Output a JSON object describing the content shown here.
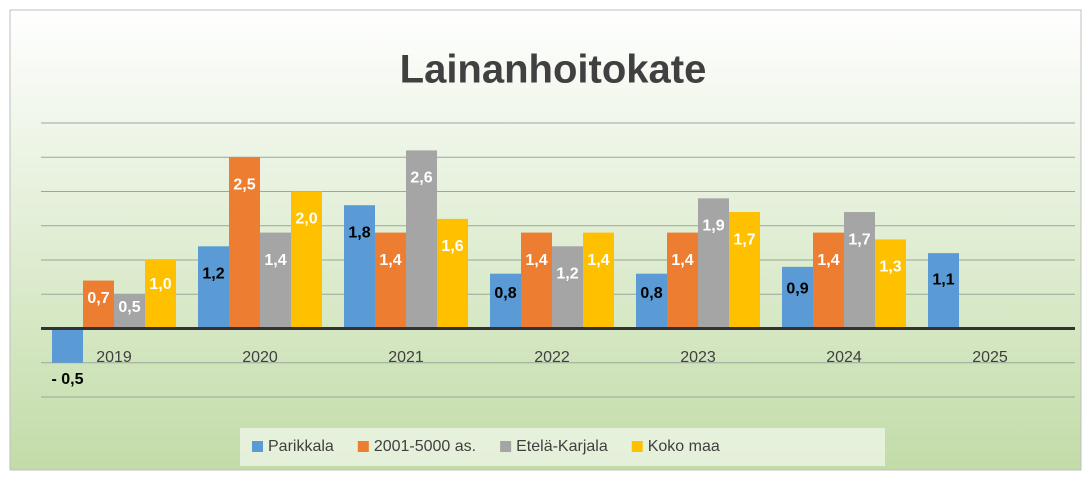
{
  "chart_data": {
    "type": "bar",
    "title": "Lainanhoitokate",
    "categories": [
      "2019",
      "2020",
      "2021",
      "2022",
      "2023",
      "2024",
      "2025"
    ],
    "series": [
      {
        "name": "Parikkala",
        "color": "#5b9bd5",
        "label_color": "#000000",
        "values": [
          -0.5,
          1.2,
          1.8,
          0.8,
          0.8,
          0.9,
          1.1
        ],
        "value_labels": [
          "- 0,5",
          "1,2",
          "1,8",
          "0,8",
          "0,8",
          "0,9",
          "1,1"
        ]
      },
      {
        "name": "2001-5000 as.",
        "color": "#ed7d31",
        "label_color": "#ffffff",
        "values": [
          0.7,
          2.5,
          1.4,
          1.4,
          1.4,
          1.4,
          null
        ],
        "value_labels": [
          "0,7",
          "2,5",
          "1,4",
          "1,4",
          "1,4",
          "1,4",
          null
        ]
      },
      {
        "name": "Etelä-Karjala",
        "color": "#a5a5a5",
        "label_color": "#ffffff",
        "values": [
          0.5,
          1.4,
          2.6,
          1.2,
          1.9,
          1.7,
          null
        ],
        "value_labels": [
          "0,5",
          "1,4",
          "2,6",
          "1,2",
          "1,9",
          "1,7",
          null
        ]
      },
      {
        "name": "Koko maa",
        "color": "#ffc000",
        "label_color": "#ffffff",
        "values": [
          1.0,
          2.0,
          1.6,
          1.4,
          1.7,
          1.3,
          null
        ],
        "value_labels": [
          "1,0",
          "2,0",
          "1,6",
          "1,4",
          "1,7",
          "1,3",
          null
        ]
      }
    ],
    "ylim": [
      -1,
      3
    ],
    "yticks": [
      -1,
      -0.5,
      0,
      0.5,
      1,
      1.5,
      2,
      2.5,
      3
    ],
    "grid": true,
    "legend": "bottom"
  }
}
